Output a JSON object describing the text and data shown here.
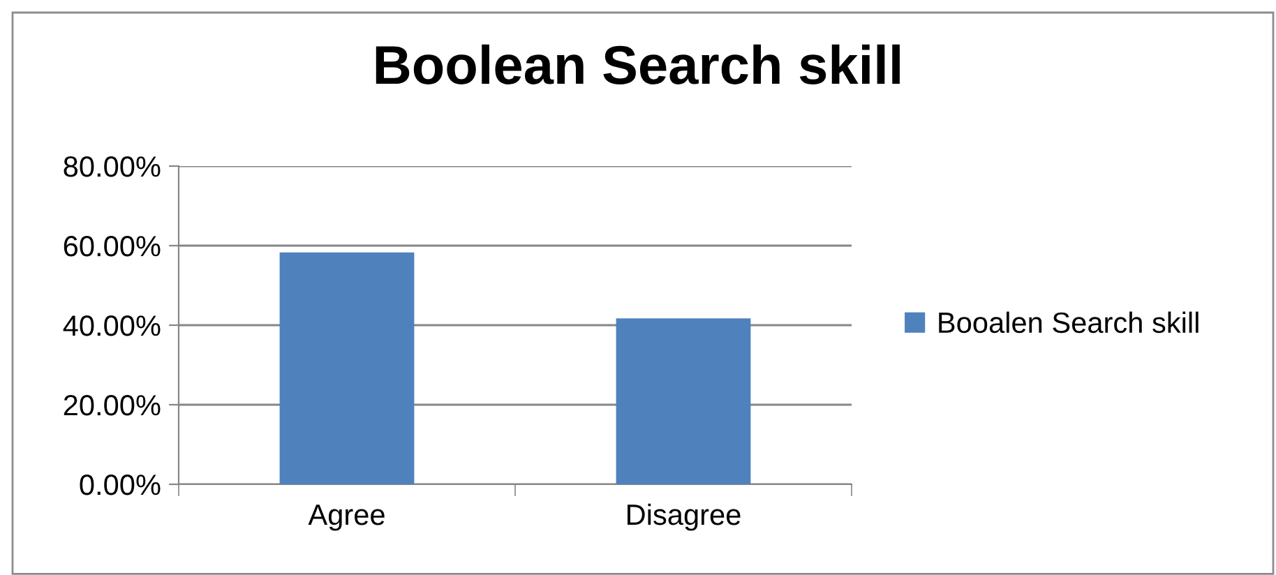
{
  "chart_data": {
    "type": "bar",
    "title": "Boolean Search skill",
    "categories": [
      "Agree",
      "Disagree"
    ],
    "series": [
      {
        "name": "Booalen Search skill",
        "color": "#4f81bd",
        "values": [
          58.3,
          41.7
        ]
      }
    ],
    "ylim": [
      0,
      80
    ],
    "yticks": [
      {
        "value": 0,
        "label": "0.00%"
      },
      {
        "value": 20,
        "label": "20.00%"
      },
      {
        "value": 40,
        "label": "40.00%"
      },
      {
        "value": 60,
        "label": "60.00%"
      },
      {
        "value": 80,
        "label": "80.00%"
      }
    ],
    "grid": "y",
    "legend": "right"
  }
}
